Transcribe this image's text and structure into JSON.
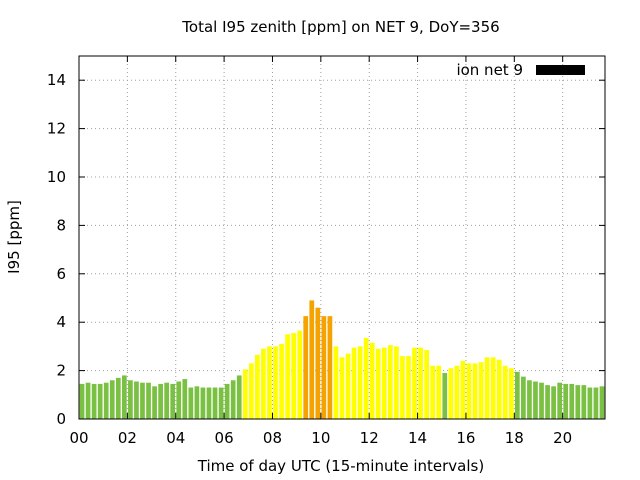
{
  "chart_data": {
    "type": "bar",
    "title": "Total I95 zenith [ppm] on NET 9, DoY=356",
    "xlabel": "Time of day UTC (15-minute intervals)",
    "ylabel": "I95 [ppm]",
    "ylim": [
      0,
      15
    ],
    "xlim": [
      0,
      21.75
    ],
    "yticks": [
      0,
      2,
      4,
      6,
      8,
      10,
      12,
      14
    ],
    "xticks": [
      0,
      2,
      4,
      6,
      8,
      10,
      12,
      14,
      16,
      18,
      20
    ],
    "xtick_labels": [
      "00",
      "02",
      "04",
      "06",
      "08",
      "10",
      "12",
      "14",
      "16",
      "18",
      "20"
    ],
    "grid": true,
    "legend": {
      "position": "top-right",
      "entries": [
        {
          "label": "ion net 9",
          "color": "#000000"
        }
      ]
    },
    "bar_width_hours": 0.25,
    "color_scale": [
      {
        "max": 2.0,
        "color": "#7ac143"
      },
      {
        "max": 4.0,
        "color": "#ffff00"
      },
      {
        "max": 15,
        "color": "#f5a300"
      }
    ],
    "x_hours": [
      0,
      0.25,
      0.5,
      0.75,
      1,
      1.25,
      1.5,
      1.75,
      2,
      2.25,
      2.5,
      2.75,
      3,
      3.25,
      3.5,
      3.75,
      4,
      4.25,
      4.5,
      4.75,
      5,
      5.25,
      5.5,
      5.75,
      6,
      6.25,
      6.5,
      6.75,
      7,
      7.25,
      7.5,
      7.75,
      8,
      8.25,
      8.5,
      8.75,
      9,
      9.25,
      9.5,
      9.75,
      10,
      10.25,
      10.5,
      10.75,
      11,
      11.25,
      11.5,
      11.75,
      12,
      12.25,
      12.5,
      12.75,
      13,
      13.25,
      13.5,
      13.75,
      14,
      14.25,
      14.5,
      14.75,
      15,
      15.25,
      15.5,
      15.75,
      16,
      16.25,
      16.5,
      16.75,
      17,
      17.25,
      17.5,
      17.75,
      18,
      18.25,
      18.5,
      18.75,
      19,
      19.25,
      19.5,
      19.75,
      20,
      20.25,
      20.5,
      20.75,
      21,
      21.25,
      21.5
    ],
    "values": [
      1.45,
      1.5,
      1.45,
      1.45,
      1.5,
      1.6,
      1.7,
      1.8,
      1.6,
      1.55,
      1.5,
      1.5,
      1.35,
      1.45,
      1.5,
      1.45,
      1.55,
      1.65,
      1.3,
      1.35,
      1.3,
      1.3,
      1.3,
      1.3,
      1.45,
      1.6,
      1.8,
      2.05,
      2.3,
      2.65,
      2.9,
      3.0,
      3.0,
      3.1,
      3.5,
      3.55,
      3.65,
      4.25,
      4.9,
      4.6,
      4.25,
      4.25,
      3.0,
      2.55,
      2.7,
      2.95,
      3.0,
      3.35,
      3.15,
      2.9,
      2.95,
      3.05,
      3.0,
      2.6,
      2.6,
      2.95,
      2.95,
      2.85,
      2.2,
      2.2,
      1.9,
      2.1,
      2.2,
      2.4,
      2.3,
      2.3,
      2.35,
      2.55,
      2.55,
      2.45,
      2.2,
      2.1,
      1.95,
      1.75,
      1.6,
      1.55,
      1.5,
      1.4,
      1.35,
      1.5,
      1.45,
      1.45,
      1.4,
      1.4,
      1.3,
      1.3,
      1.35
    ]
  }
}
